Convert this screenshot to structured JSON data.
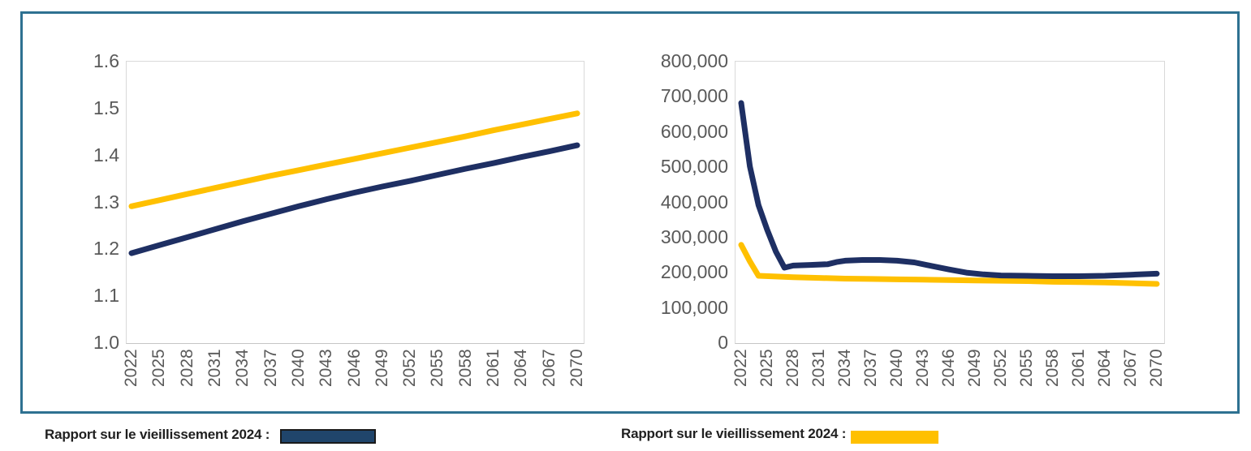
{
  "colors": {
    "navy": "#1E2F63",
    "yellow": "#FFC000",
    "axis_text": "#595959",
    "plot_border": "#D9D9D9",
    "frame_border": "#2E7191",
    "legend_navy_swatch": "#20456B",
    "legend_yellow_swatch": "#FFC000"
  },
  "legend_left": {
    "label": "Rapport sur le vieillissement 2024 :",
    "swatch_color": "#20456B",
    "swatch_border": "#1a1a1a"
  },
  "legend_right": {
    "label": "Rapport sur le vieillissement 2024 :",
    "swatch_color": "#FFC000"
  },
  "chart_data": [
    {
      "id": "left-chart",
      "type": "line",
      "title": "",
      "xlabel": "",
      "ylabel": "",
      "grid": false,
      "legend_position": "none",
      "x_range": [
        2022,
        2070
      ],
      "ylim": [
        1.0,
        1.6
      ],
      "x_tick_labels": [
        "2022",
        "2025",
        "2028",
        "2031",
        "2034",
        "2037",
        "2040",
        "2043",
        "2046",
        "2049",
        "2052",
        "2055",
        "2058",
        "2061",
        "2064",
        "2067",
        "2070"
      ],
      "y_ticks": [
        {
          "label": "1.6",
          "value": 1.6
        },
        {
          "label": "1.5",
          "value": 1.5
        },
        {
          "label": "1.4",
          "value": 1.4
        },
        {
          "label": "1.3",
          "value": 1.3
        },
        {
          "label": "1.2",
          "value": 1.2
        },
        {
          "label": "1.1",
          "value": 1.1
        },
        {
          "label": "1.0",
          "value": 1.0
        }
      ],
      "series": [
        {
          "name": "yellow-line",
          "color_key": "yellow",
          "x": [
            2022,
            2025,
            2028,
            2031,
            2034,
            2037,
            2040,
            2043,
            2046,
            2049,
            2052,
            2055,
            2058,
            2061,
            2064,
            2067,
            2070
          ],
          "values": [
            1.29,
            1.303,
            1.316,
            1.329,
            1.342,
            1.355,
            1.367,
            1.379,
            1.391,
            1.403,
            1.415,
            1.427,
            1.439,
            1.452,
            1.464,
            1.476,
            1.488
          ]
        },
        {
          "name": "navy-line",
          "color_key": "navy",
          "x": [
            2022,
            2025,
            2028,
            2031,
            2034,
            2037,
            2040,
            2043,
            2046,
            2049,
            2052,
            2055,
            2058,
            2061,
            2064,
            2067,
            2070
          ],
          "values": [
            1.19,
            1.207,
            1.224,
            1.241,
            1.258,
            1.274,
            1.29,
            1.305,
            1.319,
            1.332,
            1.344,
            1.357,
            1.37,
            1.382,
            1.395,
            1.407,
            1.42
          ]
        }
      ]
    },
    {
      "id": "right-chart",
      "type": "line",
      "title": "",
      "xlabel": "",
      "ylabel": "",
      "grid": false,
      "legend_position": "none",
      "x_range": [
        2022,
        2070
      ],
      "ylim": [
        0,
        800000
      ],
      "x_tick_labels": [
        "2022",
        "2025",
        "2028",
        "2031",
        "2034",
        "2037",
        "2040",
        "2043",
        "2046",
        "2049",
        "2052",
        "2055",
        "2058",
        "2061",
        "2064",
        "2067",
        "2070"
      ],
      "y_ticks": [
        {
          "label": "800,000",
          "value": 800000
        },
        {
          "label": "700,000",
          "value": 700000
        },
        {
          "label": "600,000",
          "value": 600000
        },
        {
          "label": "500,000",
          "value": 500000
        },
        {
          "label": "400,000",
          "value": 400000
        },
        {
          "label": "300,000",
          "value": 300000
        },
        {
          "label": "200,000",
          "value": 200000
        },
        {
          "label": "100,000",
          "value": 100000
        },
        {
          "label": "0",
          "value": 0
        }
      ],
      "series": [
        {
          "name": "yellow-line",
          "color_key": "yellow",
          "x": [
            2022,
            2023,
            2024,
            2026,
            2028,
            2031,
            2034,
            2037,
            2040,
            2043,
            2046,
            2049,
            2052,
            2055,
            2058,
            2061,
            2064,
            2067,
            2070
          ],
          "values": [
            277000,
            230000,
            189000,
            187000,
            185000,
            183000,
            181000,
            180000,
            179000,
            178000,
            177000,
            176000,
            175000,
            174000,
            172000,
            171000,
            170000,
            168000,
            166000
          ]
        },
        {
          "name": "navy-line",
          "color_key": "navy",
          "x": [
            2022,
            2023,
            2024,
            2025,
            2026,
            2027,
            2028,
            2030,
            2032,
            2033,
            2034,
            2036,
            2038,
            2040,
            2042,
            2044,
            2046,
            2048,
            2050,
            2052,
            2055,
            2058,
            2061,
            2064,
            2067,
            2070
          ],
          "values": [
            680000,
            500000,
            390000,
            320000,
            258000,
            212000,
            218000,
            220000,
            222000,
            228000,
            232000,
            234000,
            234000,
            232000,
            227000,
            217000,
            207000,
            198000,
            193000,
            190000,
            189000,
            188000,
            188000,
            189000,
            192000,
            195000
          ]
        }
      ]
    }
  ]
}
